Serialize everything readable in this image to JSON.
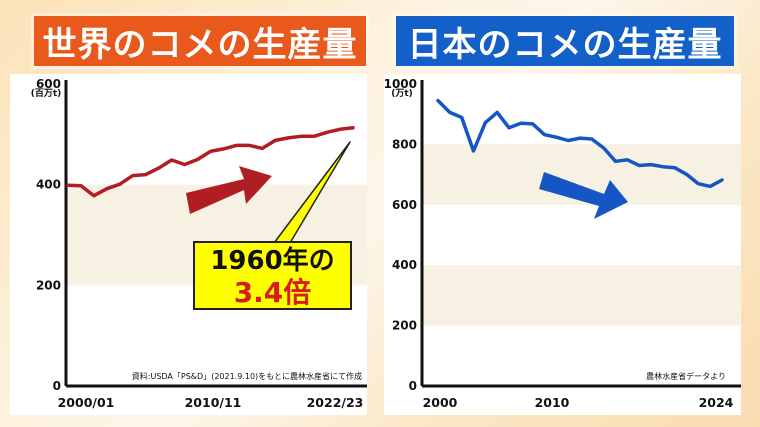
{
  "left_title": "世界のコメの生産量",
  "right_title": "日本のコメの生産量",
  "callout": {
    "line1": "1960年の",
    "line2": "3.4倍"
  },
  "colors": {
    "left_banner": "#e8591b",
    "right_banner": "#1260c8",
    "left_line": "#b01e24",
    "right_line": "#1556c4",
    "callout_bg": "#ffff00",
    "callout_emphasis": "#d61e1e"
  },
  "chart_data": [
    {
      "type": "line",
      "title": "世界のコメの生産量",
      "ylabel": "(百万t)",
      "ylim": [
        0,
        600
      ],
      "yticks": [
        0,
        200,
        400,
        600
      ],
      "x_tick_labels": [
        "2000/01",
        "2010/11",
        "2022/23"
      ],
      "shaded_bands": [
        [
          200,
          400
        ]
      ],
      "source": "資料:USDA「PS&D」(2021.9.10)をもとに農林水産省にて作成",
      "series": [
        {
          "x": [
            "2000/01",
            "2001/02",
            "2002/03",
            "2003/04",
            "2004/05",
            "2005/06",
            "2006/07",
            "2007/08",
            "2008/09",
            "2009/10",
            "2010/11",
            "2011/12",
            "2012/13",
            "2013/14",
            "2014/15",
            "2015/16",
            "2016/17",
            "2017/18",
            "2018/19",
            "2019/20",
            "2020/21",
            "2021/22",
            "2022/23"
          ],
          "values": [
            399,
            398,
            378,
            392,
            401,
            418,
            420,
            433,
            449,
            440,
            450,
            466,
            471,
            478,
            478,
            472,
            488,
            493,
            496,
            496,
            504,
            510,
            513
          ]
        }
      ]
    },
    {
      "type": "line",
      "title": "日本のコメの生産量",
      "ylabel": "(万t)",
      "ylim": [
        0,
        1000
      ],
      "yticks": [
        0,
        200,
        400,
        600,
        800,
        1000
      ],
      "x_tick_labels": [
        "2000",
        "2010",
        "2024"
      ],
      "shaded_bands": [
        [
          200,
          400
        ],
        [
          600,
          800
        ]
      ],
      "source": "農林水産省データより",
      "series": [
        {
          "x": [
            2000,
            2001,
            2002,
            2003,
            2004,
            2005,
            2006,
            2007,
            2008,
            2009,
            2010,
            2011,
            2012,
            2013,
            2014,
            2015,
            2016,
            2017,
            2018,
            2019,
            2020,
            2021,
            2022,
            2023,
            2024
          ],
          "values": [
            945,
            906,
            889,
            778,
            872,
            906,
            855,
            870,
            868,
            832,
            824,
            813,
            821,
            818,
            788,
            744,
            749,
            730,
            733,
            726,
            723,
            701,
            670,
            661,
            682
          ]
        }
      ]
    }
  ]
}
